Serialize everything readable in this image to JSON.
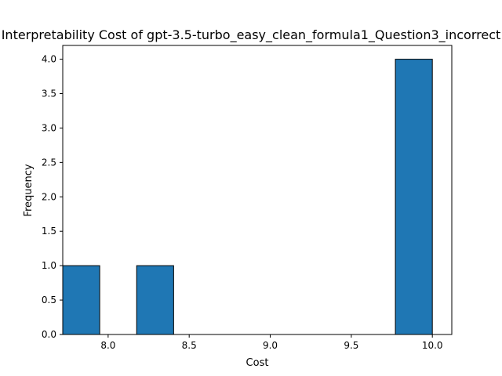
{
  "chart_data": {
    "type": "bar",
    "title": "Interpretability Cost of gpt-3.5-turbo_easy_clean_formula1_Question3_incorrect",
    "xlabel": "Cost",
    "ylabel": "Frequency",
    "xlim": [
      7.72,
      10.12
    ],
    "ylim": [
      0,
      4.2
    ],
    "xticks": [
      "8.0",
      "8.5",
      "9.0",
      "9.5",
      "10.0"
    ],
    "yticks": [
      "0.0",
      "0.5",
      "1.0",
      "1.5",
      "2.0",
      "2.5",
      "3.0",
      "3.5",
      "4.0"
    ],
    "bins": [
      {
        "start": 7.72,
        "end": 7.948,
        "count": 1
      },
      {
        "start": 7.948,
        "end": 8.176,
        "count": 0
      },
      {
        "start": 8.176,
        "end": 8.404,
        "count": 1
      },
      {
        "start": 8.404,
        "end": 8.632,
        "count": 0
      },
      {
        "start": 8.632,
        "end": 8.86,
        "count": 0
      },
      {
        "start": 8.86,
        "end": 9.088,
        "count": 0
      },
      {
        "start": 9.088,
        "end": 9.316,
        "count": 0
      },
      {
        "start": 9.316,
        "end": 9.544,
        "count": 0
      },
      {
        "start": 9.544,
        "end": 9.772,
        "count": 0
      },
      {
        "start": 9.772,
        "end": 10.0,
        "count": 4
      }
    ],
    "bar_color": "#1f77b4",
    "edge_color": "#000000",
    "grid": false,
    "legend": "none"
  }
}
